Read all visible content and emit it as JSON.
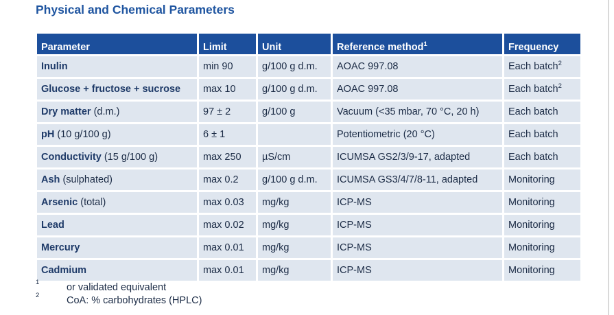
{
  "title": "Physical and Chemical Parameters",
  "table": {
    "headers": [
      {
        "text": "Parameter"
      },
      {
        "text": "Limit"
      },
      {
        "text": "Unit"
      },
      {
        "text": "Reference method",
        "note": "1"
      },
      {
        "text": "Frequency"
      }
    ],
    "rows": [
      {
        "parameter": {
          "name": "Inulin"
        },
        "limit": "min 90",
        "unit": "g/100 g d.m.",
        "method": "AOAC 997.08",
        "frequency": {
          "text": "Each batch",
          "note": "2"
        }
      },
      {
        "parameter": {
          "name": "Glucose + fructose + sucrose"
        },
        "limit": "max 10",
        "unit": "g/100 g d.m.",
        "method": "AOAC 997.08",
        "frequency": {
          "text": "Each batch",
          "note": "2"
        }
      },
      {
        "parameter": {
          "name": "Dry matter",
          "detail": "(d.m.)"
        },
        "limit": "97 ± 2",
        "unit": "g/100 g",
        "method": "Vacuum (<35 mbar, 70 °C, 20 h)",
        "frequency": {
          "text": "Each batch"
        }
      },
      {
        "parameter": {
          "name": "pH",
          "detail": "(10 g/100 g)"
        },
        "limit": "6 ± 1",
        "method": "Potentiometric (20 °C)",
        "frequency": {
          "text": "Each batch"
        }
      },
      {
        "parameter": {
          "name": "Conductivity",
          "detail": "(15 g/100 g)"
        },
        "limit": "max 250",
        "unit": "µS/cm",
        "method": "ICUMSA GS2/3/9-17, adapted",
        "frequency": {
          "text": "Each batch"
        }
      },
      {
        "parameter": {
          "name": "Ash",
          "detail": "(sulphated)"
        },
        "limit": "max 0.2",
        "unit": "g/100 g d.m.",
        "method": "ICUMSA GS3/4/7/8-11, adapted",
        "frequency": {
          "text": "Monitoring"
        }
      },
      {
        "parameter": {
          "name": "Arsenic",
          "detail": "(total)"
        },
        "limit": "max 0.03",
        "unit": "mg/kg",
        "method": "ICP-MS",
        "frequency": {
          "text": "Monitoring"
        }
      },
      {
        "parameter": {
          "name": "Lead"
        },
        "limit": "max 0.02",
        "unit": "mg/kg",
        "method": "ICP-MS",
        "frequency": {
          "text": "Monitoring"
        }
      },
      {
        "parameter": {
          "name": "Mercury"
        },
        "limit": "max 0.01",
        "unit": "mg/kg",
        "method": "ICP-MS",
        "frequency": {
          "text": "Monitoring"
        }
      },
      {
        "parameter": {
          "name": "Cadmium"
        },
        "limit": "max 0.01",
        "unit": "mg/kg",
        "method": "ICP-MS",
        "frequency": {
          "text": "Monitoring"
        }
      }
    ]
  },
  "footnotes": [
    {
      "mark": "1",
      "text": "or validated equivalent"
    },
    {
      "mark": "2",
      "text": "CoA: % carbohydrates (HPLC)"
    }
  ]
}
